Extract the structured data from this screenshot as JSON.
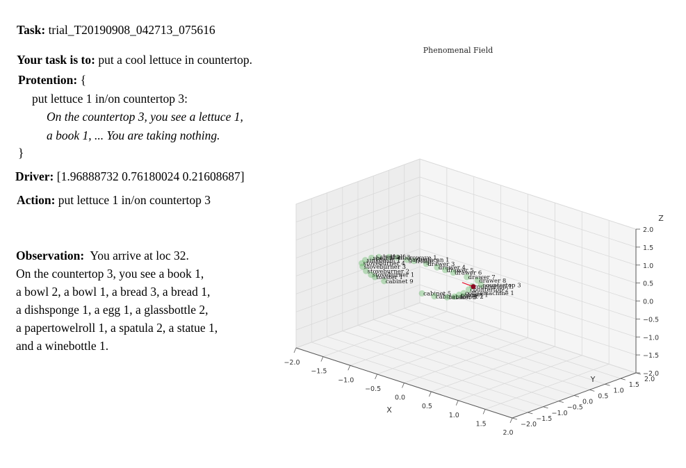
{
  "task": {
    "label": "Task:",
    "value": "trial_T20190908_042713_075616"
  },
  "goal": {
    "label": "Your task is to:",
    "value": "put a cool lettuce in countertop."
  },
  "protention": {
    "label": "Protention:",
    "open": "{",
    "line1": "put lettuce 1 in/on countertop 3:",
    "line2": "On the countertop 3, you see a lettuce 1,",
    "line3": "a book 1, ... You are taking nothing.",
    "close": "}"
  },
  "driver": {
    "label": "Driver:",
    "value": "[1.96888732 0.76180024 0.21608687]"
  },
  "action": {
    "label": "Action:",
    "value": "put lettuce 1 in/on countertop 3"
  },
  "observation": {
    "label": "Observation:",
    "first": "You arrive at loc 32.",
    "lines": [
      "On the countertop 3, you see a book 1,",
      "a bowl 2, a bowl 1, a bread 3, a bread 1,",
      "a dishsponge 1, a egg 1, a glassbottle 2,",
      "a papertowelroll 1, a spatula 2, a statue 1,",
      "and a winebottle 1."
    ]
  },
  "chart_data": {
    "type": "scatter",
    "projection": "3d",
    "title": "Phenomenal Field",
    "xlabel": "X",
    "ylabel": "Y",
    "zlabel": "Z",
    "xlim": [
      -2.0,
      2.0
    ],
    "ylim": [
      -2.0,
      2.0
    ],
    "zlim": [
      -2.0,
      2.0
    ],
    "x_ticks": [
      "−2.0",
      "−1.5",
      "−1.0",
      "−0.5",
      "0.0",
      "0.5",
      "1.0",
      "1.5",
      "2.0"
    ],
    "y_ticks": [
      "−2.0",
      "−1.5",
      "−1.0",
      "−0.5",
      "0.0",
      "0.5",
      "1.0",
      "1.5",
      "2.0"
    ],
    "z_ticks": [
      "−2.0",
      "−1.5",
      "−1.0",
      "−0.5",
      "0.0",
      "0.5",
      "1.0",
      "1.5",
      "2.0"
    ],
    "grid": true,
    "colors": {
      "object": "#4caf50",
      "driver": "#e5132e",
      "current": "#8b0a23",
      "pane": "#f2f2f2",
      "grid": "#d9d9d9"
    },
    "points": [
      {
        "label": "drawer 3",
        "x": -1.05,
        "y": 0.55,
        "z": 0.0
      },
      {
        "label": "drawer 4",
        "x": -0.85,
        "y": 0.55,
        "z": 0.0
      },
      {
        "label": "drawer 5",
        "x": -0.7,
        "y": 0.55,
        "z": 0.0
      },
      {
        "label": "drawer 6",
        "x": -0.55,
        "y": 0.55,
        "z": 0.0
      },
      {
        "label": "drawer 7",
        "x": -0.3,
        "y": 0.55,
        "z": 0.0
      },
      {
        "label": "drawer 8",
        "x": -0.1,
        "y": 0.55,
        "z": 0.0
      },
      {
        "label": "fridge 1",
        "x": -1.25,
        "y": 0.5,
        "z": 0.0
      },
      {
        "label": "garbagecan 1",
        "x": -1.35,
        "y": 0.45,
        "z": 0.0
      },
      {
        "label": "microwave 1",
        "x": -1.5,
        "y": 0.4,
        "z": 0.0
      },
      {
        "label": "shelf 3",
        "x": -1.6,
        "y": 0.3,
        "z": 0.0
      },
      {
        "label": "shelf 2",
        "x": -1.7,
        "y": 0.15,
        "z": 0.0
      },
      {
        "label": "shelf 1",
        "x": -1.75,
        "y": 0.0,
        "z": 0.0
      },
      {
        "label": "sinkbasin 1",
        "x": -1.75,
        "y": -0.2,
        "z": 0.0
      },
      {
        "label": "stoveburner 4",
        "x": -1.7,
        "y": -0.4,
        "z": 0.0
      },
      {
        "label": "stoveburner 3",
        "x": -1.6,
        "y": -0.55,
        "z": 0.0
      },
      {
        "label": "stoveburner 2",
        "x": -1.45,
        "y": -0.7,
        "z": 0.0
      },
      {
        "label": "stoveburner 1",
        "x": -1.3,
        "y": -0.8,
        "z": 0.0
      },
      {
        "label": "toaster 1",
        "x": -1.2,
        "y": -0.85,
        "z": 0.0
      },
      {
        "label": "cabinet 9",
        "x": -1.0,
        "y": -0.9,
        "z": 0.0
      },
      {
        "label": "cabinet 5",
        "x": -0.3,
        "y": -0.9,
        "z": 0.0
      },
      {
        "label": "cabinet 4",
        "x": -0.1,
        "y": -0.85,
        "z": 0.0
      },
      {
        "label": "cabinet 3",
        "x": 0.05,
        "y": -0.7,
        "z": 0.0
      },
      {
        "label": "cabinet 2",
        "x": 0.1,
        "y": -0.55,
        "z": 0.0
      },
      {
        "label": "cabinet 1",
        "x": 0.1,
        "y": -0.4,
        "z": 0.0
      },
      {
        "label": "coffeemachine 1",
        "x": 0.1,
        "y": -0.25,
        "z": 0.0
      },
      {
        "label": "countertop 2",
        "x": 0.05,
        "y": 0.0,
        "z": 0.0
      },
      {
        "label": "countertop 1",
        "x": 0.0,
        "y": 0.2,
        "z": 0.0
      },
      {
        "label": "countertop 3",
        "x": 0.05,
        "y": 0.4,
        "z": 0.0
      }
    ],
    "driver": {
      "x": 1.96888732,
      "y": 0.76180024,
      "z": 0.21608687
    }
  }
}
